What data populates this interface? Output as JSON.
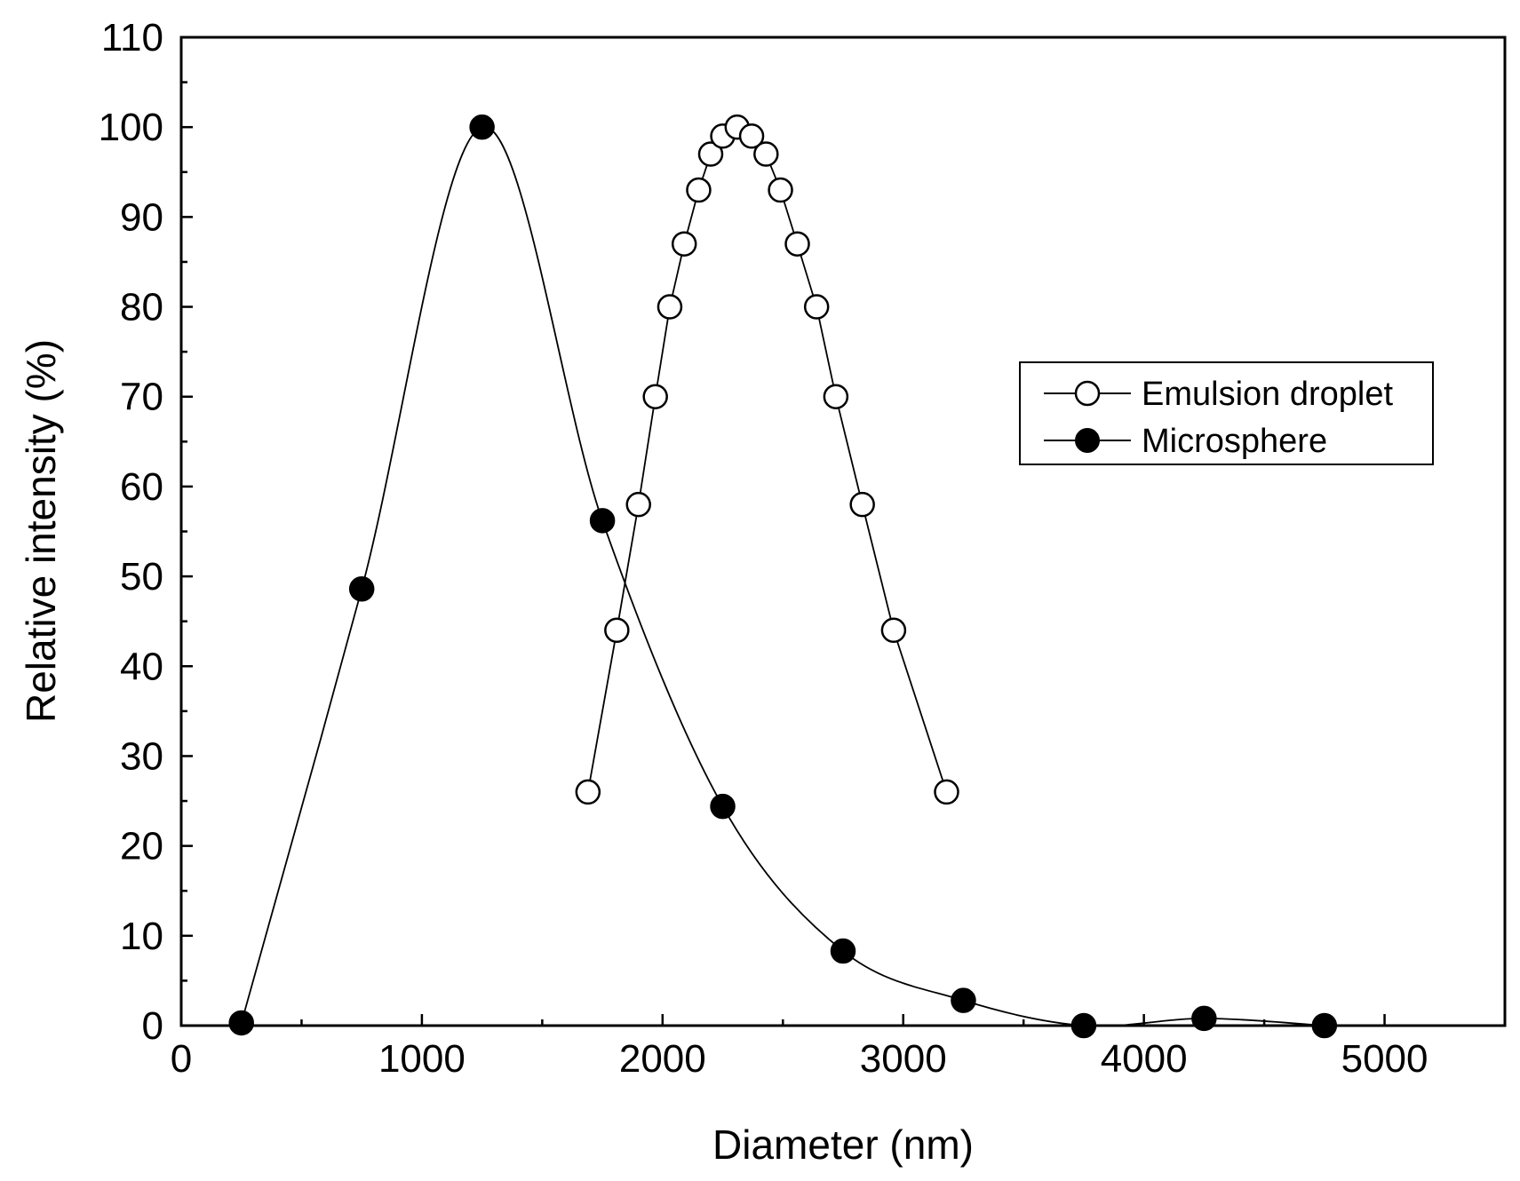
{
  "chart_data": {
    "type": "scatter",
    "xlabel": "Diameter (nm)",
    "ylabel": "Relative intensity (%)",
    "xlim": [
      0,
      5500
    ],
    "ylim": [
      0,
      110
    ],
    "x_ticks": [
      0,
      1000,
      2000,
      3000,
      4000,
      5000
    ],
    "y_ticks": [
      0,
      10,
      20,
      30,
      40,
      50,
      60,
      70,
      80,
      90,
      100,
      110
    ],
    "x_tick_labels": [
      "0",
      "1000",
      "2000",
      "3000",
      "4000",
      "5000"
    ],
    "y_tick_labels": [
      "0",
      "10",
      "20",
      "30",
      "40",
      "50",
      "60",
      "70",
      "80",
      "90",
      "100",
      "110"
    ],
    "grid": false,
    "legend_position": "right",
    "series": [
      {
        "name": "Emulsion droplet",
        "marker": "open-circle",
        "line": "straight",
        "color": "#000000",
        "x": [
          1690,
          1810,
          1900,
          1970,
          2030,
          2090,
          2150,
          2200,
          2250,
          2310,
          2370,
          2430,
          2490,
          2560,
          2640,
          2720,
          2830,
          2960,
          3180
        ],
        "y": [
          26,
          44,
          58,
          70,
          80,
          87,
          93,
          97,
          99,
          100,
          99,
          97,
          93,
          87,
          80,
          70,
          58,
          44,
          26
        ]
      },
      {
        "name": "Microsphere",
        "marker": "filled-circle",
        "line": "smooth",
        "color": "#000000",
        "x": [
          250,
          750,
          1250,
          1750,
          2250,
          2750,
          3250,
          3750,
          4250,
          4750
        ],
        "y": [
          0.3,
          48.6,
          100,
          56.2,
          24.4,
          8.3,
          2.8,
          0,
          0.8,
          0
        ]
      }
    ]
  }
}
